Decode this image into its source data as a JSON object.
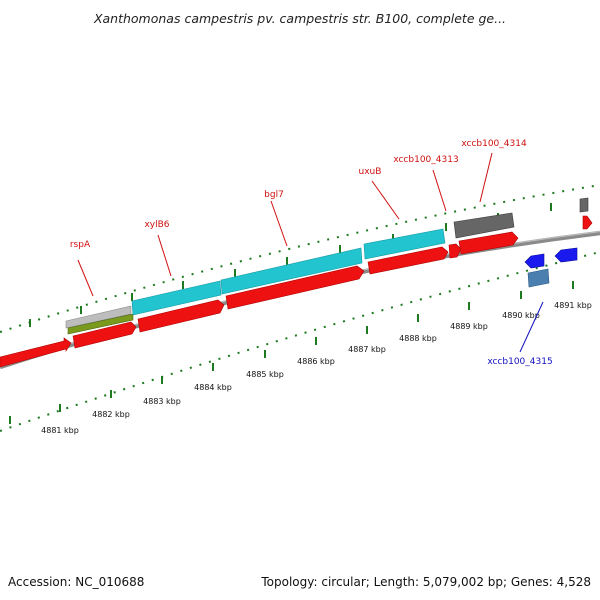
{
  "title": "Xanthomonas campestris pv. campestris str. B100, complete ge...",
  "footer": {
    "accession": "Accession: NC_010688",
    "summary": "Topology: circular; Length: 5,079,002 bp; Genes: 4,528"
  },
  "colors": {
    "backbone": "#8a8a8a",
    "tick": "#1e7a1e",
    "gene_fwd": "#ee1111",
    "gene_rev": "#1a1aee",
    "cds_feature": "#22c4cf",
    "rrna_like": "#7a9a1e",
    "pseudo": "#666666",
    "misc": "#4a7fb0",
    "label_fwd": "#d01010",
    "label_rev": "#1010c0"
  },
  "kbp_ticks": [
    {
      "label": "4881 kbp"
    },
    {
      "label": "4882 kbp"
    },
    {
      "label": "4883 kbp"
    },
    {
      "label": "4884 kbp"
    },
    {
      "label": "4885 kbp"
    },
    {
      "label": "4886 kbp"
    },
    {
      "label": "4887 kbp"
    },
    {
      "label": "4888 kbp"
    },
    {
      "label": "4889 kbp"
    },
    {
      "label": "4890 kbp"
    },
    {
      "label": "4891 kbp"
    }
  ],
  "gene_labels": [
    {
      "name": "rspA",
      "strand": "forward"
    },
    {
      "name": "xylB6",
      "strand": "forward"
    },
    {
      "name": "bgl7",
      "strand": "forward"
    },
    {
      "name": "uxuB",
      "strand": "forward"
    },
    {
      "name": "xccb100_4313",
      "strand": "forward"
    },
    {
      "name": "xccb100_4314",
      "strand": "forward"
    },
    {
      "name": "xccb100_4315",
      "strand": "reverse"
    }
  ]
}
